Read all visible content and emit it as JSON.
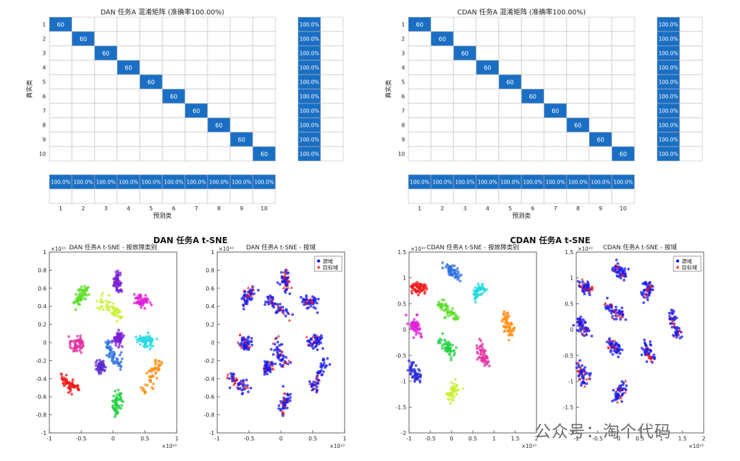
{
  "watermark": "公众号：淘个代码",
  "chart_data": [
    {
      "type": "heatmap",
      "title": "DAN 任务A 混淆矩阵 (准确率100.00%)",
      "xlabel": "预测类",
      "ylabel": "真实类",
      "classes": [
        "1",
        "2",
        "3",
        "4",
        "5",
        "6",
        "7",
        "8",
        "9",
        "10"
      ],
      "diagonal_value": 60,
      "row_summary": [
        "100.0%",
        "100.0%",
        "100.0%",
        "100.0%",
        "100.0%",
        "100.0%",
        "100.0%",
        "100.0%",
        "100.0%",
        "100.0%"
      ],
      "col_summary": [
        "100.0%",
        "100.0%",
        "100.0%",
        "100.0%",
        "100.0%",
        "100.0%",
        "100.0%",
        "100.0%",
        "100.0%",
        "100.0%"
      ]
    },
    {
      "type": "heatmap",
      "title": "CDAN 任务A 混淆矩阵 (准确率100.00%)",
      "xlabel": "预测类",
      "ylabel": "真实类",
      "classes": [
        "1",
        "2",
        "3",
        "4",
        "5",
        "6",
        "7",
        "8",
        "9",
        "10"
      ],
      "diagonal_value": 60,
      "row_summary": [
        "100.0%",
        "100.0%",
        "100.0%",
        "100.0%",
        "100.0%",
        "100.0%",
        "100.0%",
        "100.0%",
        "100.0%",
        "100.0%"
      ],
      "col_summary": [
        "100.0%",
        "100.0%",
        "100.0%",
        "100.0%",
        "100.0%",
        "100.0%",
        "100.0%",
        "100.0%",
        "100.0%",
        "100.0%"
      ]
    },
    {
      "type": "scatter",
      "suptitle": "DAN 任务A t-SNE",
      "title": "DAN 任务A t-SNE - 按故障类别",
      "multiplier": "×10¹⁰",
      "xlim": [
        -1,
        1
      ],
      "ylim": [
        -1,
        1
      ],
      "xticks": [
        "-1",
        "-0.5",
        "0",
        "0.5",
        "1"
      ],
      "yticks": [
        "-1",
        "-0.8",
        "-0.6",
        "-0.4",
        "-0.2",
        "0",
        "0.2",
        "0.4",
        "0.6",
        "0.8",
        "1"
      ],
      "clusters": [
        {
          "color": "#7a1fd6",
          "pts": [
            [
              0.06,
              0.78
            ],
            [
              0.07,
              0.68
            ],
            [
              0.08,
              0.58
            ]
          ]
        },
        {
          "color": "#55dd22",
          "pts": [
            [
              -0.6,
              0.44
            ],
            [
              -0.5,
              0.52
            ],
            [
              -0.42,
              0.58
            ]
          ]
        },
        {
          "color": "#c8f030",
          "pts": [
            [
              -0.2,
              0.47
            ],
            [
              -0.05,
              0.38
            ],
            [
              0.12,
              0.3
            ]
          ]
        },
        {
          "color": "#e020d8",
          "pts": [
            [
              0.38,
              0.48
            ],
            [
              0.46,
              0.43
            ],
            [
              0.54,
              0.46
            ]
          ]
        },
        {
          "color": "#e030a0",
          "pts": [
            [
              -0.63,
              0.03
            ],
            [
              -0.56,
              -0.04
            ],
            [
              -0.5,
              0.0
            ]
          ]
        },
        {
          "color": "#2b6fe0",
          "pts": [
            [
              -0.1,
              0.02
            ],
            [
              -0.02,
              -0.15
            ],
            [
              0.12,
              -0.24
            ]
          ]
        },
        {
          "color": "#7a1fd6",
          "pts": [
            [
              0.08,
              0.05
            ]
          ]
        },
        {
          "color": "#22d8e0",
          "pts": [
            [
              0.42,
              0.02
            ],
            [
              0.52,
              0.0
            ],
            [
              0.62,
              0.03
            ]
          ]
        },
        {
          "color": "#ff8c10",
          "pts": [
            [
              0.48,
              -0.56
            ],
            [
              0.58,
              -0.4
            ],
            [
              0.7,
              -0.22
            ]
          ]
        },
        {
          "color": "#ee1515",
          "pts": [
            [
              -0.8,
              -0.38
            ],
            [
              -0.68,
              -0.46
            ],
            [
              -0.55,
              -0.51
            ]
          ]
        },
        {
          "color": "#22d040",
          "pts": [
            [
              0.02,
              -0.8
            ],
            [
              0.06,
              -0.66
            ],
            [
              0.09,
              -0.58
            ]
          ]
        },
        {
          "color": "#5a2ad0",
          "pts": [
            [
              -0.2,
              -0.28
            ]
          ]
        }
      ]
    },
    {
      "type": "scatter",
      "title": "DAN 任务A t-SNE - 按域",
      "multiplier": "×10¹⁰",
      "xlim": [
        -1,
        1
      ],
      "ylim": [
        -1,
        1
      ],
      "xticks": [
        "-1",
        "-0.5",
        "0",
        "0.5",
        "1"
      ],
      "yticks": [
        "-1",
        "-0.8",
        "-0.6",
        "-0.4",
        "-0.2",
        "0",
        "0.2",
        "0.4",
        "0.6",
        "0.8",
        "1"
      ],
      "legend": [
        {
          "label": "源域",
          "color": "#1a1aee",
          "marker": "circle"
        },
        {
          "label": "目标域",
          "color": "#ee1a1a",
          "marker": "triangle"
        }
      ],
      "clusters": [
        {
          "pts": [
            [
              0.06,
              0.78
            ],
            [
              0.07,
              0.68
            ],
            [
              0.08,
              0.58
            ]
          ]
        },
        {
          "pts": [
            [
              -0.6,
              0.44
            ],
            [
              -0.5,
              0.52
            ],
            [
              -0.42,
              0.58
            ]
          ]
        },
        {
          "pts": [
            [
              -0.2,
              0.47
            ],
            [
              -0.05,
              0.38
            ],
            [
              0.12,
              0.3
            ]
          ]
        },
        {
          "pts": [
            [
              0.38,
              0.48
            ],
            [
              0.46,
              0.43
            ],
            [
              0.54,
              0.46
            ]
          ]
        },
        {
          "pts": [
            [
              -0.63,
              0.03
            ],
            [
              -0.56,
              -0.04
            ],
            [
              -0.5,
              0.0
            ]
          ]
        },
        {
          "pts": [
            [
              -0.1,
              0.02
            ],
            [
              -0.02,
              -0.15
            ],
            [
              0.12,
              -0.24
            ]
          ]
        },
        {
          "pts": [
            [
              0.42,
              0.02
            ],
            [
              0.52,
              0.0
            ],
            [
              0.62,
              0.03
            ]
          ]
        },
        {
          "pts": [
            [
              0.48,
              -0.56
            ],
            [
              0.58,
              -0.4
            ],
            [
              0.7,
              -0.22
            ]
          ]
        },
        {
          "pts": [
            [
              -0.8,
              -0.38
            ],
            [
              -0.68,
              -0.46
            ],
            [
              -0.55,
              -0.51
            ]
          ]
        },
        {
          "pts": [
            [
              0.02,
              -0.8
            ],
            [
              0.06,
              -0.66
            ],
            [
              0.09,
              -0.58
            ]
          ]
        },
        {
          "pts": [
            [
              -0.2,
              -0.28
            ]
          ]
        }
      ]
    },
    {
      "type": "scatter",
      "suptitle": "CDAN 任务A t-SNE",
      "title": "CDAN 任务A t-SNE - 按故障类别",
      "multiplier": "×10¹⁰",
      "xlim": [
        -1,
        2
      ],
      "ylim": [
        -2,
        1.5
      ],
      "xticks": [
        "-1",
        "-0.5",
        "0",
        "0.5",
        "1",
        "1.5",
        "2"
      ],
      "yticks": [
        "-2",
        "-1.5",
        "-1",
        "-0.5",
        "0",
        "0.5",
        "1",
        "1.5"
      ],
      "clusters": [
        {
          "color": "#ee1515",
          "pts": [
            [
              -0.9,
              0.85
            ],
            [
              -0.78,
              0.82
            ],
            [
              -0.65,
              0.8
            ]
          ]
        },
        {
          "color": "#2b6fe0",
          "pts": [
            [
              -0.1,
              1.2
            ],
            [
              0.05,
              1.12
            ],
            [
              0.18,
              1.05
            ]
          ]
        },
        {
          "color": "#22d8e0",
          "pts": [
            [
              0.55,
              0.65
            ],
            [
              0.65,
              0.75
            ],
            [
              0.75,
              0.85
            ]
          ]
        },
        {
          "color": "#55dd22",
          "pts": [
            [
              -0.28,
              0.5
            ],
            [
              -0.1,
              0.35
            ],
            [
              0.1,
              0.28
            ]
          ]
        },
        {
          "color": "#e020d8",
          "pts": [
            [
              -0.95,
              0.2
            ],
            [
              -0.85,
              0.05
            ],
            [
              -0.75,
              -0.05
            ]
          ]
        },
        {
          "color": "#ff8c10",
          "pts": [
            [
              1.25,
              0.3
            ],
            [
              1.32,
              0.05
            ],
            [
              1.42,
              -0.15
            ]
          ]
        },
        {
          "color": "#22d040",
          "pts": [
            [
              -0.2,
              -0.25
            ],
            [
              -0.1,
              -0.35
            ],
            [
              0.0,
              -0.45
            ]
          ]
        },
        {
          "color": "#e030a0",
          "pts": [
            [
              0.65,
              -0.3
            ],
            [
              0.72,
              -0.5
            ],
            [
              0.8,
              -0.6
            ]
          ]
        },
        {
          "color": "#2b2bd8",
          "pts": [
            [
              -0.95,
              -0.7
            ],
            [
              -0.85,
              -0.85
            ],
            [
              -0.78,
              -1.0
            ]
          ]
        },
        {
          "color": "#c8f030",
          "pts": [
            [
              -0.08,
              -1.35
            ],
            [
              0.02,
              -1.2
            ],
            [
              0.1,
              -1.1
            ]
          ]
        }
      ]
    },
    {
      "type": "scatter",
      "title": "CDAN 任务A t-SNE - 按域",
      "multiplier": "×10¹⁰",
      "xlim": [
        -1,
        2
      ],
      "ylim": [
        -2,
        1.5
      ],
      "xticks": [
        "-1",
        "-0.5",
        "0",
        "0.5",
        "1",
        "1.5",
        "2"
      ],
      "yticks": [
        "-2",
        "-1.5",
        "-1",
        "-0.5",
        "0",
        "0.5",
        "1",
        "1.5"
      ],
      "legend": [
        {
          "label": "源域",
          "color": "#1a1aee",
          "marker": "circle"
        },
        {
          "label": "目标域",
          "color": "#ee1a1a",
          "marker": "triangle"
        }
      ],
      "clusters": [
        {
          "pts": [
            [
              -0.9,
              0.85
            ],
            [
              -0.78,
              0.82
            ],
            [
              -0.65,
              0.8
            ]
          ]
        },
        {
          "pts": [
            [
              -0.1,
              1.2
            ],
            [
              0.05,
              1.12
            ],
            [
              0.18,
              1.05
            ]
          ]
        },
        {
          "pts": [
            [
              0.55,
              0.65
            ],
            [
              0.65,
              0.75
            ],
            [
              0.75,
              0.85
            ]
          ]
        },
        {
          "pts": [
            [
              -0.28,
              0.5
            ],
            [
              -0.1,
              0.35
            ],
            [
              0.1,
              0.28
            ]
          ]
        },
        {
          "pts": [
            [
              -0.95,
              0.2
            ],
            [
              -0.85,
              0.05
            ],
            [
              -0.75,
              -0.05
            ]
          ]
        },
        {
          "pts": [
            [
              1.25,
              0.3
            ],
            [
              1.32,
              0.05
            ],
            [
              1.42,
              -0.15
            ]
          ]
        },
        {
          "pts": [
            [
              -0.2,
              -0.25
            ],
            [
              -0.1,
              -0.35
            ],
            [
              0.0,
              -0.45
            ]
          ]
        },
        {
          "pts": [
            [
              0.65,
              -0.3
            ],
            [
              0.72,
              -0.5
            ],
            [
              0.8,
              -0.6
            ]
          ]
        },
        {
          "pts": [
            [
              -0.95,
              -0.7
            ],
            [
              -0.85,
              -0.85
            ],
            [
              -0.78,
              -1.0
            ]
          ]
        },
        {
          "pts": [
            [
              -0.08,
              -1.35
            ],
            [
              0.02,
              -1.2
            ],
            [
              0.1,
              -1.1
            ]
          ]
        }
      ]
    }
  ]
}
